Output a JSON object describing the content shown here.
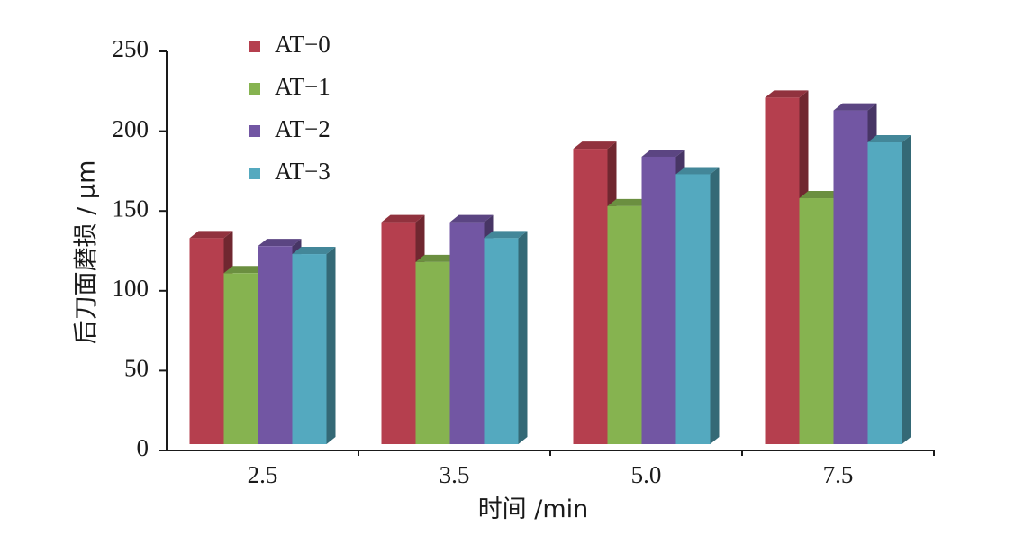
{
  "chart_data": {
    "type": "bar",
    "categories": [
      "2.5",
      "3.5",
      "5.0",
      "7.5"
    ],
    "series": [
      {
        "name": "AT−0",
        "values": [
          133,
          143,
          189,
          221
        ],
        "color": "#b53f4e"
      },
      {
        "name": "AT−1",
        "values": [
          111,
          118,
          153,
          158
        ],
        "color": "#86b350"
      },
      {
        "name": "AT−2",
        "values": [
          128,
          143,
          184,
          213
        ],
        "color": "#7256a3"
      },
      {
        "name": "AT−3",
        "values": [
          123,
          133,
          173,
          193
        ],
        "color": "#54a9bf"
      }
    ],
    "xlabel": "时间 /min",
    "ylabel": "后刀面磨损 / μm",
    "ylim": [
      0,
      250
    ],
    "yticks": [
      "0",
      "50",
      "100",
      "150",
      "200",
      "250"
    ],
    "legend_position": "top-left",
    "grid": false,
    "style": "3d-clustered-bar"
  }
}
